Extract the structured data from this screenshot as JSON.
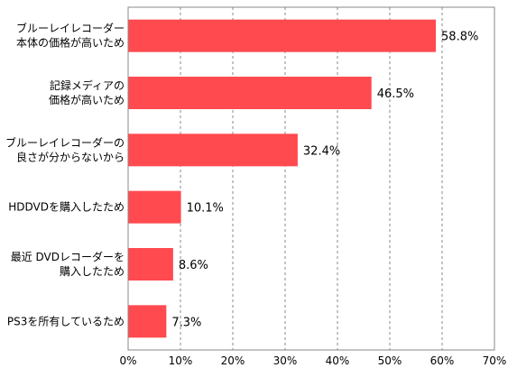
{
  "chart_data": {
    "type": "bar",
    "orientation": "horizontal",
    "title": "",
    "xlabel": "",
    "ylabel": "",
    "categories": [
      [
        "ブルーレイレコーダー",
        "本体の価格が高いため"
      ],
      [
        "記録メディアの",
        "価格が高いため"
      ],
      [
        "ブルーレイレコーダーの",
        "良さが分からないから"
      ],
      [
        "HDDVDを購入したため"
      ],
      [
        "最近 DVDレコーダーを",
        "購入したため"
      ],
      [
        "PS3を所有しているため"
      ]
    ],
    "values": [
      58.8,
      46.5,
      32.4,
      10.1,
      8.6,
      7.3
    ],
    "value_labels": [
      "58.8%",
      "46.5%",
      "32.4%",
      "10.1%",
      "8.6%",
      "7.3%"
    ],
    "xlim": [
      0,
      70
    ],
    "xticks": [
      0,
      10,
      20,
      30,
      40,
      50,
      60,
      70
    ],
    "xtick_labels": [
      "0%",
      "10%",
      "20%",
      "30%",
      "40%",
      "50%",
      "60%",
      "70%"
    ],
    "grid": "vertical-dashed",
    "legend": "none",
    "bar_color": "#ff4a4f",
    "axis_color": "#888888"
  }
}
